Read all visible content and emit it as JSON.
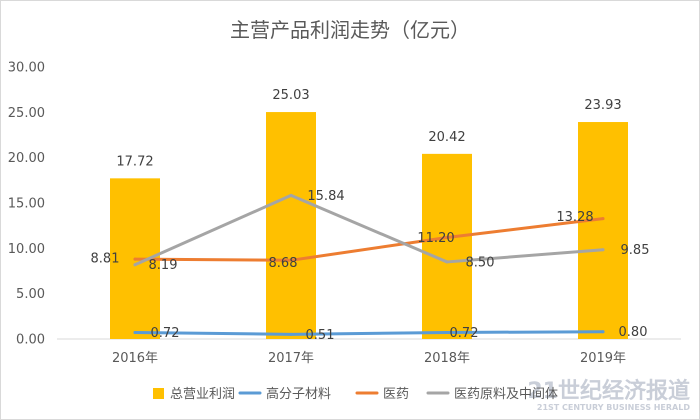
{
  "chart_data": {
    "type": "bar",
    "title": "主营产品利润走势（亿元）",
    "categories": [
      "2016年",
      "2017年",
      "2018年",
      "2019年"
    ],
    "ylim": [
      0,
      30
    ],
    "yticks": [
      0,
      5,
      10,
      15,
      20,
      25,
      30
    ],
    "grid": false,
    "legend_position": "bottom",
    "series": [
      {
        "name": "总营业利润",
        "type": "bar",
        "color": "#FFC000",
        "values": [
          17.72,
          25.03,
          20.42,
          23.93
        ]
      },
      {
        "name": "高分子材料",
        "type": "line",
        "color": "#5B9BD5",
        "values": [
          0.72,
          0.51,
          0.72,
          0.8
        ]
      },
      {
        "name": "医药",
        "type": "line",
        "color": "#ED7D31",
        "values": [
          8.81,
          8.68,
          11.2,
          13.28
        ]
      },
      {
        "name": "医药原料及中间体",
        "type": "line",
        "color": "#A5A5A5",
        "values": [
          8.19,
          15.84,
          8.5,
          9.85
        ]
      }
    ]
  },
  "watermark": {
    "text": "21世纪经济报道",
    "subtext": "21ST CENTURY BUSINESS HERALD"
  }
}
